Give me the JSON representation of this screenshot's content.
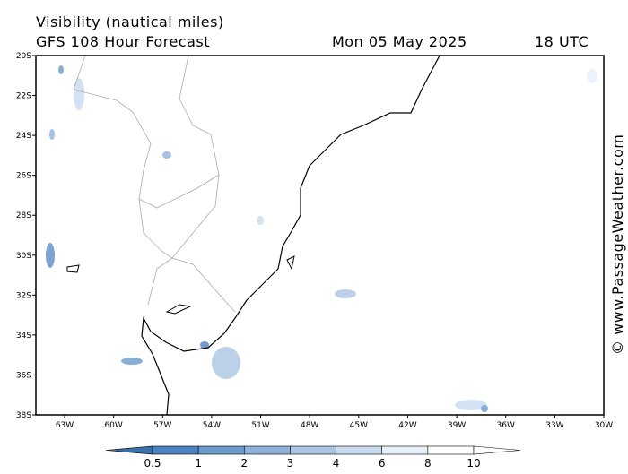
{
  "header": {
    "title": "Visibility (nautical miles)",
    "model": "GFS 108 Hour Forecast",
    "date": "Mon 05 May 2025",
    "time": "18 UTC"
  },
  "map": {
    "lat_labels": [
      "20S",
      "22S",
      "24S",
      "26S",
      "28S",
      "30S",
      "32S",
      "34S",
      "36S",
      "38S"
    ],
    "lon_labels": [
      "63W",
      "60W",
      "57W",
      "54W",
      "51W",
      "48W",
      "45W",
      "42W",
      "39W",
      "36W",
      "33W",
      "30W"
    ]
  },
  "colorbar": {
    "labels": [
      "0.5",
      "1",
      "2",
      "3",
      "4",
      "6",
      "8",
      "10"
    ],
    "colors": [
      "#3b6fae",
      "#4b82c2",
      "#6b9acd",
      "#8cb2d9",
      "#abc6e3",
      "#c9dbef",
      "#e7eff8",
      "#ffffff"
    ]
  },
  "watermark": "© www.PassageWeather.com"
}
